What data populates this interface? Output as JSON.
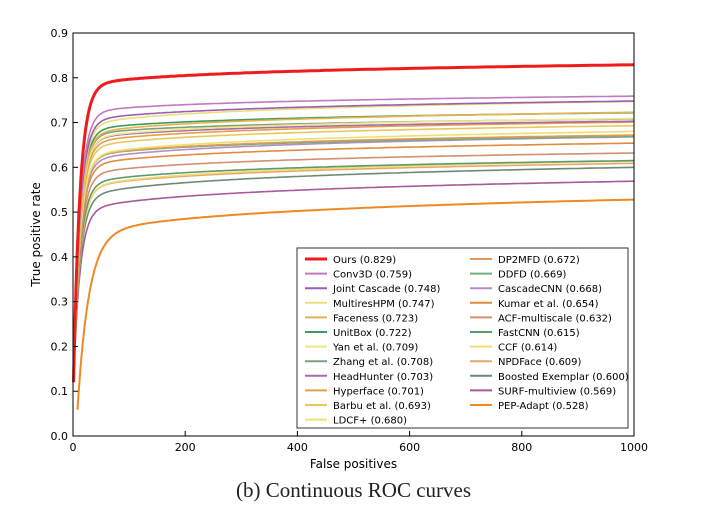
{
  "chart_data": {
    "type": "line",
    "title": "",
    "xlabel": "False positives",
    "ylabel": "True positive rate",
    "xlim": [
      0,
      1000
    ],
    "ylim": [
      0,
      0.9
    ],
    "xticks": [
      0,
      200,
      400,
      600,
      800,
      1000
    ],
    "yticks": [
      0.0,
      0.1,
      0.2,
      0.3,
      0.4,
      0.5,
      0.6,
      0.7,
      0.8,
      0.9
    ],
    "grid": false,
    "legend_position": "bottom-right",
    "series": [
      {
        "name": "Ours (0.829)",
        "color": "#ee1c1c",
        "width": 3,
        "final": 0.829,
        "start": 0.12,
        "knee": 0.78,
        "x0": 1
      },
      {
        "name": "Conv3D (0.759)",
        "color": "#c07ac0",
        "width": 1.6,
        "final": 0.759,
        "start": 0.12,
        "knee": 0.72,
        "x0": 1
      },
      {
        "name": "Joint Cascade (0.748)",
        "color": "#9a5fb0",
        "width": 1.6,
        "final": 0.748,
        "start": 0.12,
        "knee": 0.7,
        "x0": 1
      },
      {
        "name": "MultiresHPM (0.747)",
        "color": "#e8e07a",
        "width": 1.6,
        "final": 0.747,
        "start": 0.12,
        "knee": 0.69,
        "x0": 1
      },
      {
        "name": "Faceness (0.723)",
        "color": "#e6b24e",
        "width": 1.6,
        "final": 0.723,
        "start": 0.12,
        "knee": 0.67,
        "x0": 1
      },
      {
        "name": "UnitBox (0.722)",
        "color": "#3f9a5f",
        "width": 1.6,
        "final": 0.722,
        "start": 0.12,
        "knee": 0.68,
        "x0": 1
      },
      {
        "name": "Yan et al. (0.709)",
        "color": "#f1e68a",
        "width": 1.6,
        "final": 0.709,
        "start": 0.12,
        "knee": 0.66,
        "x0": 1
      },
      {
        "name": "Zhang et al. (0.708)",
        "color": "#7aa27a",
        "width": 1.6,
        "final": 0.708,
        "start": 0.12,
        "knee": 0.67,
        "x0": 1
      },
      {
        "name": "HeadHunter (0.703)",
        "color": "#a86aa8",
        "width": 1.6,
        "final": 0.703,
        "start": 0.12,
        "knee": 0.66,
        "x0": 1
      },
      {
        "name": "Hyperface (0.701)",
        "color": "#e3a04a",
        "width": 1.6,
        "final": 0.701,
        "start": 0.12,
        "knee": 0.65,
        "x0": 1
      },
      {
        "name": "Barbu et al. (0.693)",
        "color": "#e8c85a",
        "width": 1.6,
        "final": 0.693,
        "start": 0.12,
        "knee": 0.64,
        "x0": 1
      },
      {
        "name": "LDCF+ (0.680)",
        "color": "#eee070",
        "width": 1.6,
        "final": 0.68,
        "start": 0.12,
        "knee": 0.62,
        "x0": 1
      },
      {
        "name": "DP2MFD (0.672)",
        "color": "#e09a55",
        "width": 1.6,
        "final": 0.672,
        "start": 0.12,
        "knee": 0.62,
        "x0": 1
      },
      {
        "name": "DDFD (0.669)",
        "color": "#6fb17a",
        "width": 1.6,
        "final": 0.669,
        "start": 0.12,
        "knee": 0.62,
        "x0": 1
      },
      {
        "name": "CascadeCNN (0.668)",
        "color": "#b48ec4",
        "width": 1.6,
        "final": 0.668,
        "start": 0.12,
        "knee": 0.61,
        "x0": 1
      },
      {
        "name": "Kumar et al. (0.654)",
        "color": "#e08c3c",
        "width": 1.6,
        "final": 0.654,
        "start": 0.12,
        "knee": 0.6,
        "x0": 1
      },
      {
        "name": "ACF-multiscale (0.632)",
        "color": "#d49070",
        "width": 1.6,
        "final": 0.632,
        "start": 0.12,
        "knee": 0.58,
        "x0": 1
      },
      {
        "name": "FastCNN (0.615)",
        "color": "#5e9a6e",
        "width": 1.6,
        "final": 0.615,
        "start": 0.12,
        "knee": 0.56,
        "x0": 1
      },
      {
        "name": "CCF (0.614)",
        "color": "#f0dc70",
        "width": 1.6,
        "final": 0.614,
        "start": 0.12,
        "knee": 0.55,
        "x0": 1
      },
      {
        "name": "NPDFace (0.609)",
        "color": "#e3a86a",
        "width": 1.6,
        "final": 0.609,
        "start": 0.12,
        "knee": 0.55,
        "x0": 1
      },
      {
        "name": "Boosted Exemplar (0.600)",
        "color": "#6f8a72",
        "width": 1.6,
        "final": 0.6,
        "start": 0.12,
        "knee": 0.53,
        "x0": 1
      },
      {
        "name": "SURF-multiview (0.569)",
        "color": "#a8589c",
        "width": 1.6,
        "final": 0.569,
        "start": 0.12,
        "knee": 0.5,
        "x0": 1
      },
      {
        "name": "PEP-Adapt (0.528)",
        "color": "#ee8a22",
        "width": 2,
        "final": 0.528,
        "start": 0.055,
        "knee": 0.44,
        "x0": 8
      }
    ]
  },
  "caption": "(b)  Continuous ROC curves"
}
